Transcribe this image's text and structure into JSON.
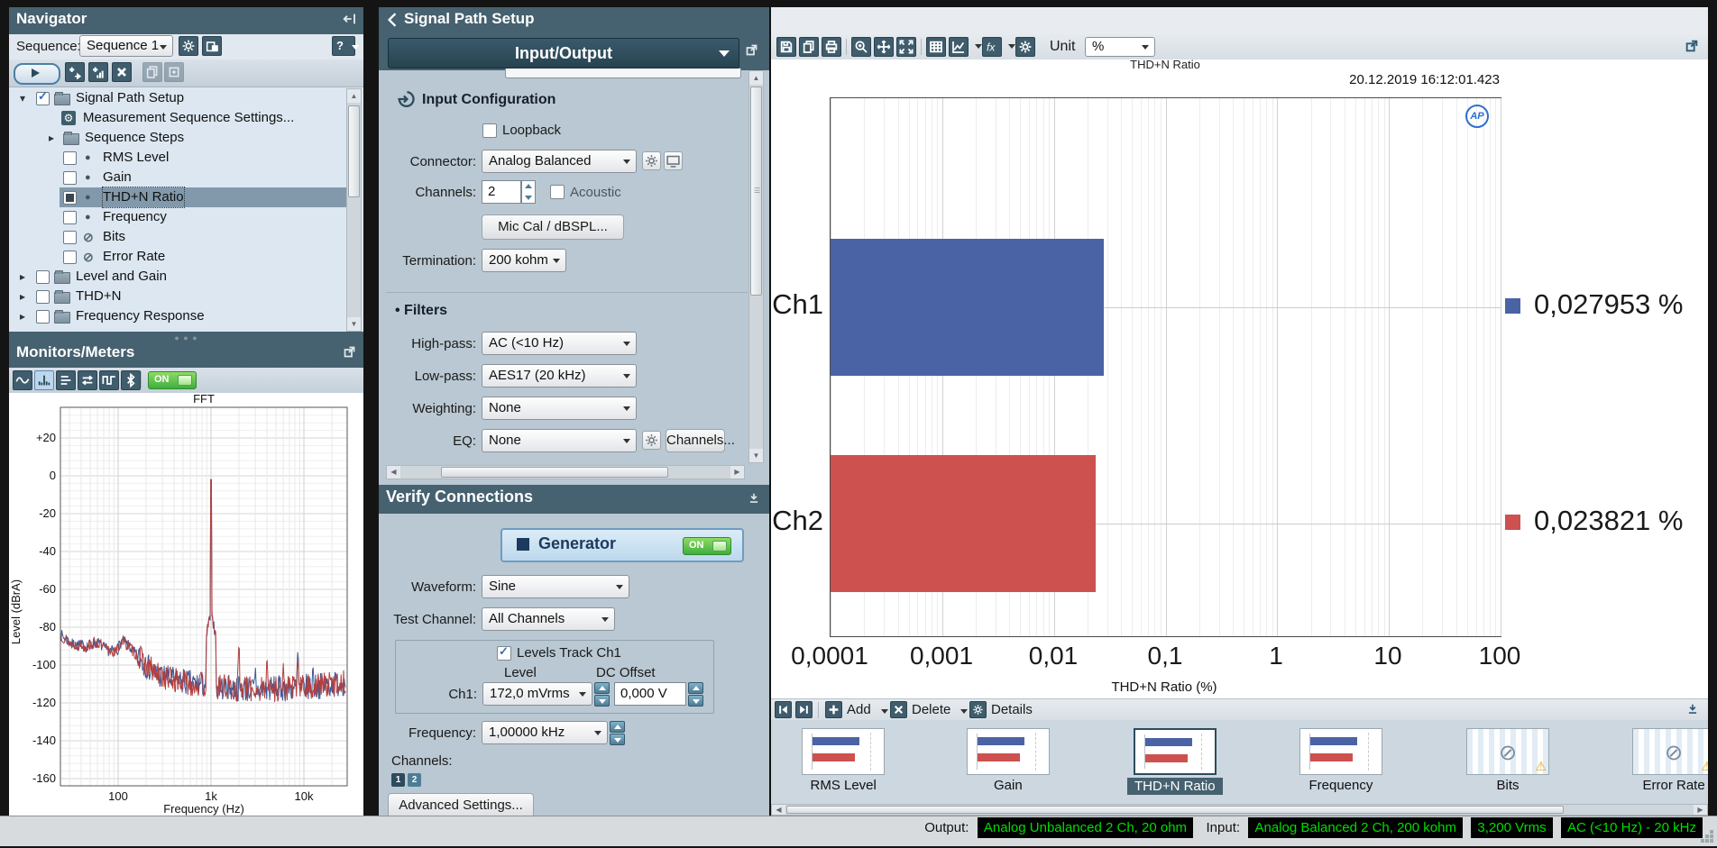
{
  "navigator": {
    "title": "Navigator",
    "sequence_label": "Sequence:",
    "sequence_value": "Sequence 1",
    "help_label": "?",
    "tree": [
      {
        "label": "Signal Path Setup",
        "indent": 1,
        "expander": "open",
        "checkbox": "checked",
        "icon": "folder",
        "selected": false
      },
      {
        "label": "Measurement Sequence Settings...",
        "indent": 2,
        "icon": "gear-badge",
        "selected": false
      },
      {
        "label": "Sequence Steps",
        "indent": 2,
        "expander": "closed",
        "icon": "folder",
        "selected": false
      },
      {
        "label": "RMS Level",
        "indent": 2,
        "checkbox": "unchecked",
        "icon": "dot",
        "selected": false
      },
      {
        "label": "Gain",
        "indent": 2,
        "checkbox": "unchecked",
        "icon": "dot",
        "selected": false
      },
      {
        "label": "THD+N Ratio",
        "indent": 2,
        "checkbox": "filled",
        "icon": "dot",
        "selected": true
      },
      {
        "label": "Frequency",
        "indent": 2,
        "checkbox": "unchecked",
        "icon": "dot",
        "selected": false
      },
      {
        "label": "Bits",
        "indent": 2,
        "checkbox": "unchecked",
        "icon": "blocked",
        "selected": false
      },
      {
        "label": "Error Rate",
        "indent": 2,
        "checkbox": "unchecked",
        "icon": "blocked",
        "selected": false
      },
      {
        "label": "Level and Gain",
        "indent": 1,
        "expander": "closed",
        "checkbox": "unchecked",
        "icon": "folder",
        "selected": false
      },
      {
        "label": "THD+N",
        "indent": 1,
        "expander": "closed",
        "checkbox": "unchecked",
        "icon": "folder",
        "selected": false
      },
      {
        "label": "Frequency Response",
        "indent": 1,
        "expander": "closed",
        "checkbox": "unchecked",
        "icon": "folder",
        "selected": false
      }
    ]
  },
  "monitors": {
    "title": "Monitors/Meters",
    "on_label": "ON",
    "toolbar": [
      "sine-monitor-icon",
      "fft-monitor-icon",
      "meters-monitor-icon",
      "io-monitor-icon",
      "scope-monitor-icon",
      "bluetooth-monitor-icon"
    ],
    "selected_tool": 1
  },
  "signal_path": {
    "title": "Signal Path Setup",
    "view_selector": "Input/Output",
    "input_config": {
      "heading": "Input Configuration",
      "loopback_label": "Loopback",
      "connector_label": "Connector:",
      "connector_value": "Analog Balanced",
      "channels_label": "Channels:",
      "channels_value": "2",
      "acoustic_label": "Acoustic",
      "mic_cal_button": "Mic Cal / dBSPL...",
      "termination_label": "Termination:",
      "termination_value": "200 kohm"
    },
    "filters": {
      "heading": "Filters",
      "high_pass_label": "High-pass:",
      "high_pass_value": "AC (<10 Hz)",
      "low_pass_label": "Low-pass:",
      "low_pass_value": "AES17 (20 kHz)",
      "weighting_label": "Weighting:",
      "weighting_value": "None",
      "eq_label": "EQ:",
      "eq_value": "None",
      "channels_button": "Channels..."
    }
  },
  "verify": {
    "title": "Verify Connections",
    "generator_label": "Generator",
    "generator_on": "ON",
    "waveform_label": "Waveform:",
    "waveform_value": "Sine",
    "test_channel_label": "Test Channel:",
    "test_channel_value": "All Channels",
    "levels_track_label": "Levels Track Ch1",
    "level_header": "Level",
    "dc_offset_header": "DC Offset",
    "ch1_label": "Ch1:",
    "ch1_level_value": "172,0 mVrms",
    "ch1_dc_value": "0,000 V",
    "frequency_label": "Frequency:",
    "frequency_value": "1,00000 kHz",
    "channels_label": "Channels:",
    "channel_buttons": [
      "1",
      "2"
    ],
    "advanced_button": "Advanced Settings..."
  },
  "graph": {
    "unit_label": "Unit",
    "unit_value": "%",
    "logo": "AP",
    "toolbar": [
      "save-icon",
      "copy-icon",
      "print-icon",
      "zoom-in-icon",
      "pan-icon",
      "fit-icon",
      "table-view-icon",
      "graph-type-icon",
      "fx-icon",
      "graph-settings-icon"
    ]
  },
  "sequencer_bar": {
    "add_label": "Add",
    "delete_label": "Delete",
    "details_label": "Details"
  },
  "thumbnails": [
    {
      "label": "RMS Level",
      "kind": "bars",
      "selected": false,
      "warning": false
    },
    {
      "label": "Gain",
      "kind": "bars",
      "selected": false,
      "warning": false
    },
    {
      "label": "THD+N Ratio",
      "kind": "bars",
      "selected": true,
      "warning": false
    },
    {
      "label": "Frequency",
      "kind": "bars",
      "selected": false,
      "warning": false
    },
    {
      "label": "Bits",
      "kind": "blocked",
      "selected": false,
      "warning": true
    },
    {
      "label": "Error Rate",
      "kind": "blocked",
      "selected": false,
      "warning": true
    }
  ],
  "status_bar": {
    "output_label": "Output:",
    "output_value": "Analog Unbalanced 2 Ch, 20 ohm",
    "input_label": "Input:",
    "input_values": [
      "Analog Balanced 2 Ch, 200 kohm",
      "3,200 Vrms",
      "AC (<10 Hz) - 20 kHz"
    ]
  },
  "colors": {
    "bar_blue": "#4A63A5",
    "bar_red": "#CC514F",
    "fft_blue": "#3D5A96",
    "fft_red": "#B43F3F",
    "header_slate": "#46616F",
    "on_green": "#3FAE3F",
    "status_green": "#00DC00"
  },
  "chart_data": [
    {
      "id": "thdn-ratio-bar",
      "type": "bar",
      "orientation": "horizontal",
      "title": "THD+N Ratio",
      "timestamp": "20.12.2019 16:12:01.423",
      "categories": [
        "Ch1",
        "Ch2"
      ],
      "values": [
        0.027953,
        0.023821
      ],
      "value_labels": [
        "0,027953 %",
        "0,023821 %"
      ],
      "colors": [
        "#4A63A5",
        "#CC514F"
      ],
      "xlabel": "THD+N Ratio (%)",
      "x_scale": "log",
      "xlim": [
        0.0001,
        100
      ],
      "x_ticks": [
        0.0001,
        0.001,
        0.01,
        0.1,
        1,
        10,
        100
      ],
      "x_tick_labels": [
        "0,0001",
        "0,001",
        "0,01",
        "0,1",
        "1",
        "10",
        "100"
      ],
      "unit": "%",
      "grid": true,
      "legend_position": "right"
    },
    {
      "id": "monitor-fft",
      "type": "line",
      "title": "FFT",
      "xlabel": "Frequency (Hz)",
      "ylabel": "Level (dBrA)",
      "x_scale": "log",
      "xlim": [
        24,
        28000
      ],
      "x_ticks": [
        100,
        1000,
        10000
      ],
      "x_tick_labels": [
        "100",
        "1k",
        "10k"
      ],
      "ylim": [
        -172,
        36
      ],
      "y_ticks": [
        20,
        0,
        -20,
        -40,
        -60,
        -80,
        -100,
        -120,
        -140,
        -160
      ],
      "fundamental_hz": 1000,
      "fundamental_db": -2,
      "noise_amplitude_db": 7,
      "envelope_db": [
        [
          24,
          -84
        ],
        [
          32,
          -89
        ],
        [
          45,
          -90
        ],
        [
          60,
          -88
        ],
        [
          75,
          -92
        ],
        [
          95,
          -93
        ],
        [
          110,
          -87
        ],
        [
          130,
          -90
        ],
        [
          160,
          -95
        ],
        [
          200,
          -100
        ],
        [
          260,
          -105
        ],
        [
          400,
          -108
        ],
        [
          700,
          -110
        ],
        [
          1500,
          -112
        ],
        [
          3000,
          -113
        ],
        [
          8000,
          -112
        ],
        [
          15000,
          -111
        ],
        [
          28000,
          -109
        ]
      ],
      "series": [
        {
          "name": "Ch1",
          "color": "#3D5A96",
          "seed": 7,
          "spikes": [
            [
              3000,
              -100
            ],
            [
              8600,
              -91
            ],
            [
              12500,
              -98
            ]
          ]
        },
        {
          "name": "Ch2",
          "color": "#B43F3F",
          "seed": 13,
          "spikes": [
            [
              2000,
              -87
            ],
            [
              4000,
              -94
            ],
            [
              6000,
              -98
            ],
            [
              8600,
              -95
            ]
          ]
        }
      ]
    }
  ]
}
